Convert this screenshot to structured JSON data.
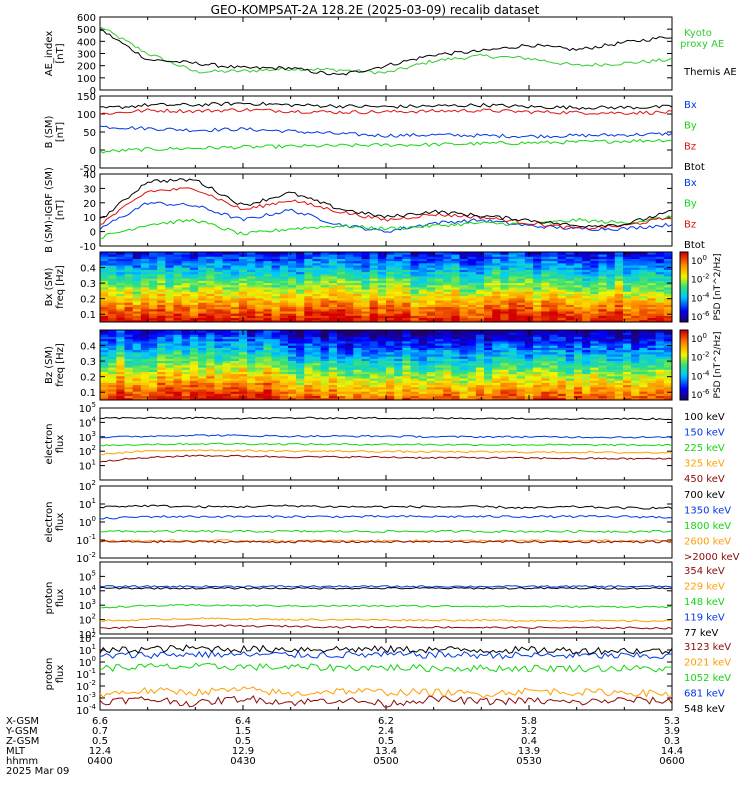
{
  "title": "GEO-KOMPSAT-2A 128.2E (2025-03-09) recalib dataset",
  "colors": {
    "black": "#000000",
    "blue": "#0038e6",
    "green": "#13d613",
    "red": "#e01010",
    "orange": "#ff9f00",
    "darkred": "#8b0a0a",
    "ae_green": "#33cc33",
    "ae_black": "#000000"
  },
  "chart_data": [
    {
      "type": "line",
      "id": "ae",
      "ylabel": [
        "AE_index",
        "[nT]"
      ],
      "ylim": [
        0,
        600
      ],
      "yticks": [
        "0",
        "100",
        "200",
        "300",
        "400",
        "500",
        "600"
      ],
      "x": [
        "0400",
        "0410",
        "0420",
        "0430",
        "0440",
        "0450",
        "0500",
        "0510",
        "0520",
        "0530",
        "0540",
        "0550",
        "0600"
      ],
      "series": [
        {
          "name": "Kyoto proxy AE",
          "color": "#33cc33",
          "values": [
            520,
            300,
            150,
            155,
            175,
            165,
            140,
            240,
            280,
            260,
            200,
            220,
            250
          ]
        },
        {
          "name": "Themis AE",
          "color": "#000000",
          "values": [
            500,
            250,
            220,
            180,
            180,
            120,
            200,
            290,
            320,
            370,
            330,
            390,
            440
          ]
        }
      ],
      "legend": [
        "Kyoto",
        "proxy AE",
        "Themis AE"
      ]
    },
    {
      "type": "line",
      "id": "bsm",
      "ylabel": [
        "B (SM)",
        "[nT]"
      ],
      "ylim": [
        -50,
        150
      ],
      "yticks": [
        "-50",
        "0",
        "50",
        "100",
        "150"
      ],
      "series": [
        {
          "name": "Bx",
          "color": "#0038e6",
          "values": [
            65,
            60,
            55,
            58,
            52,
            45,
            40,
            42,
            40,
            38,
            40,
            42,
            45
          ]
        },
        {
          "name": "By",
          "color": "#13d613",
          "values": [
            -5,
            2,
            5,
            8,
            10,
            12,
            14,
            15,
            18,
            20,
            22,
            25,
            28
          ]
        },
        {
          "name": "Bz",
          "color": "#e01010",
          "values": [
            100,
            110,
            108,
            112,
            108,
            105,
            106,
            108,
            110,
            106,
            104,
            103,
            105
          ]
        },
        {
          "name": "Btot",
          "color": "#000000",
          "values": [
            115,
            125,
            125,
            130,
            125,
            122,
            120,
            122,
            125,
            120,
            118,
            118,
            120
          ]
        }
      ],
      "legend": [
        "Bx",
        "By",
        "Bz",
        "Btot"
      ]
    },
    {
      "type": "line",
      "id": "bsm_igrf",
      "ylabel": [
        "B (SM)-IGRF (SM)",
        "[nT]"
      ],
      "ylim": [
        -10,
        40
      ],
      "yticks": [
        "-10",
        "0",
        "10",
        "20",
        "30",
        "40"
      ],
      "series": [
        {
          "name": "Bx",
          "color": "#0038e6",
          "values": [
            2,
            20,
            18,
            8,
            15,
            5,
            0,
            6,
            8,
            4,
            2,
            2,
            5
          ]
        },
        {
          "name": "By",
          "color": "#13d613",
          "values": [
            -4,
            5,
            8,
            -2,
            2,
            4,
            2,
            4,
            6,
            5,
            8,
            6,
            10
          ]
        },
        {
          "name": "Bz",
          "color": "#e01010",
          "values": [
            5,
            28,
            30,
            15,
            22,
            14,
            8,
            12,
            10,
            6,
            2,
            4,
            10
          ]
        },
        {
          "name": "Btot",
          "color": "#000000",
          "values": [
            8,
            35,
            36,
            18,
            27,
            16,
            10,
            14,
            11,
            8,
            4,
            5,
            14
          ]
        }
      ],
      "legend": [
        "Bx",
        "By",
        "Bz",
        "Btot"
      ]
    },
    {
      "type": "heatmap",
      "id": "bx_spec",
      "ylabel": [
        "Bx (SM)",
        "freq [Hz]"
      ],
      "ylim": [
        0.05,
        0.5
      ],
      "yticks": [
        "0.1",
        "0.2",
        "0.3",
        "0.4"
      ],
      "colorbar": {
        "label": "PSD [nT^2/Hz]",
        "ticks": [
          "10^0",
          "10^-2",
          "10^-4",
          "10^-6"
        ]
      }
    },
    {
      "type": "heatmap",
      "id": "bz_spec",
      "ylabel": [
        "Bz (SM)",
        "freq [Hz]"
      ],
      "ylim": [
        0.05,
        0.5
      ],
      "yticks": [
        "0.1",
        "0.2",
        "0.3",
        "0.4"
      ],
      "colorbar": {
        "label": "PSD [nT^2/Hz]",
        "ticks": [
          "10^0",
          "10^-2",
          "10^-4",
          "10^-6"
        ]
      }
    },
    {
      "type": "line",
      "id": "e_flux_low",
      "ylabel": [
        "electron",
        "flux"
      ],
      "ylim": [
        1,
        100000
      ],
      "log": true,
      "yticks": [
        "10^1",
        "10^2",
        "10^3",
        "10^4",
        "10^5"
      ],
      "series": [
        {
          "name": "100 keV",
          "color": "#000000",
          "values": [
            20000,
            20000,
            20000,
            19000,
            20000,
            20000,
            20000,
            19000,
            19000,
            19000,
            18000,
            18000,
            17000
          ]
        },
        {
          "name": "150 keV",
          "color": "#0038e6",
          "values": [
            900,
            1100,
            1300,
            1200,
            1100,
            1100,
            1100,
            1000,
            1000,
            1000,
            950,
            950,
            900
          ]
        },
        {
          "name": "225 keV",
          "color": "#13d613",
          "values": [
            250,
            300,
            330,
            320,
            310,
            300,
            300,
            290,
            280,
            280,
            270,
            270,
            260
          ]
        },
        {
          "name": "325 keV",
          "color": "#ff9f00",
          "values": [
            60,
            100,
            120,
            110,
            100,
            100,
            95,
            90,
            90,
            85,
            85,
            80,
            80
          ]
        },
        {
          "name": "450 keV",
          "color": "#8b0a0a",
          "values": [
            20,
            35,
            50,
            45,
            40,
            40,
            38,
            35,
            35,
            33,
            32,
            30,
            30
          ]
        }
      ],
      "legend": [
        "100 keV",
        "150 keV",
        "225 keV",
        "325 keV",
        "450 keV"
      ]
    },
    {
      "type": "line",
      "id": "e_flux_high",
      "ylabel": [
        "electron",
        "flux"
      ],
      "ylim": [
        0.01,
        100
      ],
      "log": true,
      "yticks": [
        "10^-2",
        "10^-1",
        "10^0",
        "10^1",
        "10^2"
      ],
      "series": [
        {
          "name": "700 keV",
          "color": "#000000",
          "values": [
            7,
            8,
            7,
            7,
            8,
            7,
            7,
            7,
            7,
            6,
            7,
            6,
            6
          ]
        },
        {
          "name": "1350 keV",
          "color": "#0038e6",
          "values": [
            1.5,
            2,
            2,
            2,
            2,
            2,
            2,
            2,
            2,
            2,
            2,
            2,
            1.8
          ]
        },
        {
          "name": "1800 keV",
          "color": "#13d613",
          "values": [
            0.3,
            0.3,
            0.3,
            0.3,
            0.3,
            0.3,
            0.3,
            0.3,
            0.3,
            0.3,
            0.3,
            0.3,
            0.3
          ]
        },
        {
          "name": "2600 keV",
          "color": "#ff9f00",
          "values": [
            0.09,
            0.09,
            0.09,
            0.09,
            0.09,
            0.09,
            0.09,
            0.09,
            0.09,
            0.09,
            0.09,
            0.09,
            0.09
          ]
        },
        {
          "name": ">2000 keV",
          "color": "#8b0a0a",
          "values": [
            0.08,
            0.08,
            0.08,
            0.08,
            0.08,
            0.08,
            0.08,
            0.08,
            0.08,
            0.08,
            0.08,
            0.08,
            0.08
          ]
        }
      ],
      "legend": [
        "700 keV",
        "1350 keV",
        "1800 keV",
        "2600 keV",
        ">2000 keV"
      ]
    },
    {
      "type": "line",
      "id": "p_flux_low",
      "ylabel": [
        "proton",
        "flux"
      ],
      "ylim": [
        10,
        1000000
      ],
      "log": true,
      "yticks": [
        "10^1",
        "10^2",
        "10^3",
        "10^4",
        "10^5"
      ],
      "series": [
        {
          "name": "354 keV",
          "color": "#8b0a0a",
          "values": [
            25,
            30,
            40,
            35,
            35,
            30,
            30,
            30,
            28,
            28,
            27,
            27,
            25
          ]
        },
        {
          "name": "229 keV",
          "color": "#ff9f00",
          "values": [
            80,
            100,
            120,
            110,
            100,
            100,
            95,
            90,
            90,
            85,
            85,
            80,
            80
          ]
        },
        {
          "name": "148 keV",
          "color": "#13d613",
          "values": [
            700,
            900,
            1000,
            950,
            900,
            900,
            880,
            860,
            850,
            820,
            800,
            780,
            760
          ]
        },
        {
          "name": "119 keV",
          "color": "#0038e6",
          "values": [
            20000,
            20000,
            20000,
            20000,
            20000,
            20000,
            20000,
            20000,
            20000,
            20000,
            20000,
            20000,
            20000
          ]
        },
        {
          "name": "77 keV",
          "color": "#000000",
          "values": [
            15000,
            15000,
            15000,
            15000,
            15000,
            15000,
            15000,
            15000,
            15000,
            15000,
            15000,
            15000,
            15000
          ]
        }
      ],
      "legend": [
        "354 keV",
        "229 keV",
        "148 keV",
        "119 keV",
        "77 keV"
      ]
    },
    {
      "type": "line",
      "id": "p_flux_high",
      "ylabel": [
        "proton",
        "flux"
      ],
      "ylim": [
        0.0001,
        100
      ],
      "log": true,
      "yticks": [
        "10^-4",
        "10^-3",
        "10^-2",
        "10^-1",
        "10^0",
        "10^1",
        "10^2"
      ],
      "series": [
        {
          "name": "3123 keV",
          "color": "#8b0a0a",
          "values": [
            0.0005,
            0.0008,
            0.0003,
            0.0009,
            0.0004,
            0.0007,
            0.0003,
            0.0008,
            0.0005,
            0.0006,
            0.0004,
            0.0007,
            0.0005
          ]
        },
        {
          "name": "2021 keV",
          "color": "#ff9f00",
          "values": [
            0.002,
            0.004,
            0.003,
            0.005,
            0.002,
            0.004,
            0.003,
            0.003,
            0.002,
            0.004,
            0.003,
            0.003,
            0.002
          ]
        },
        {
          "name": "1052 keV",
          "color": "#13d613",
          "values": [
            0.3,
            0.4,
            0.4,
            0.4,
            0.35,
            0.35,
            0.35,
            0.3,
            0.3,
            0.3,
            0.3,
            0.3,
            0.25
          ]
        },
        {
          "name": "681 keV",
          "color": "#0038e6",
          "values": [
            3,
            4,
            4.5,
            4,
            4,
            4,
            4,
            4,
            3.8,
            3.5,
            3.5,
            3.2,
            3
          ]
        },
        {
          "name": "548 keV",
          "color": "#000000",
          "values": [
            8,
            12,
            14,
            12,
            12,
            12,
            11,
            11,
            10,
            10,
            9,
            9,
            8
          ]
        }
      ],
      "legend": [
        "3123 keV",
        "2021 keV",
        "1052 keV",
        "681 keV",
        "548 keV"
      ]
    }
  ],
  "ephemeris": {
    "labels": [
      "X-GSM",
      "Y-GSM",
      "Z-GSM",
      "MLT",
      "hhmm",
      "2025 Mar 09"
    ],
    "columns": [
      [
        "6.6",
        "0.7",
        "0.5",
        "12.4",
        "0400"
      ],
      [
        "6.4",
        "1.5",
        "0.5",
        "12.9",
        "0430"
      ],
      [
        "6.2",
        "2.4",
        "0.5",
        "13.4",
        "0500"
      ],
      [
        "5.8",
        "3.2",
        "0.4",
        "13.9",
        "0530"
      ],
      [
        "5.3",
        "3.9",
        "0.3",
        "14.4",
        "0600"
      ]
    ]
  }
}
